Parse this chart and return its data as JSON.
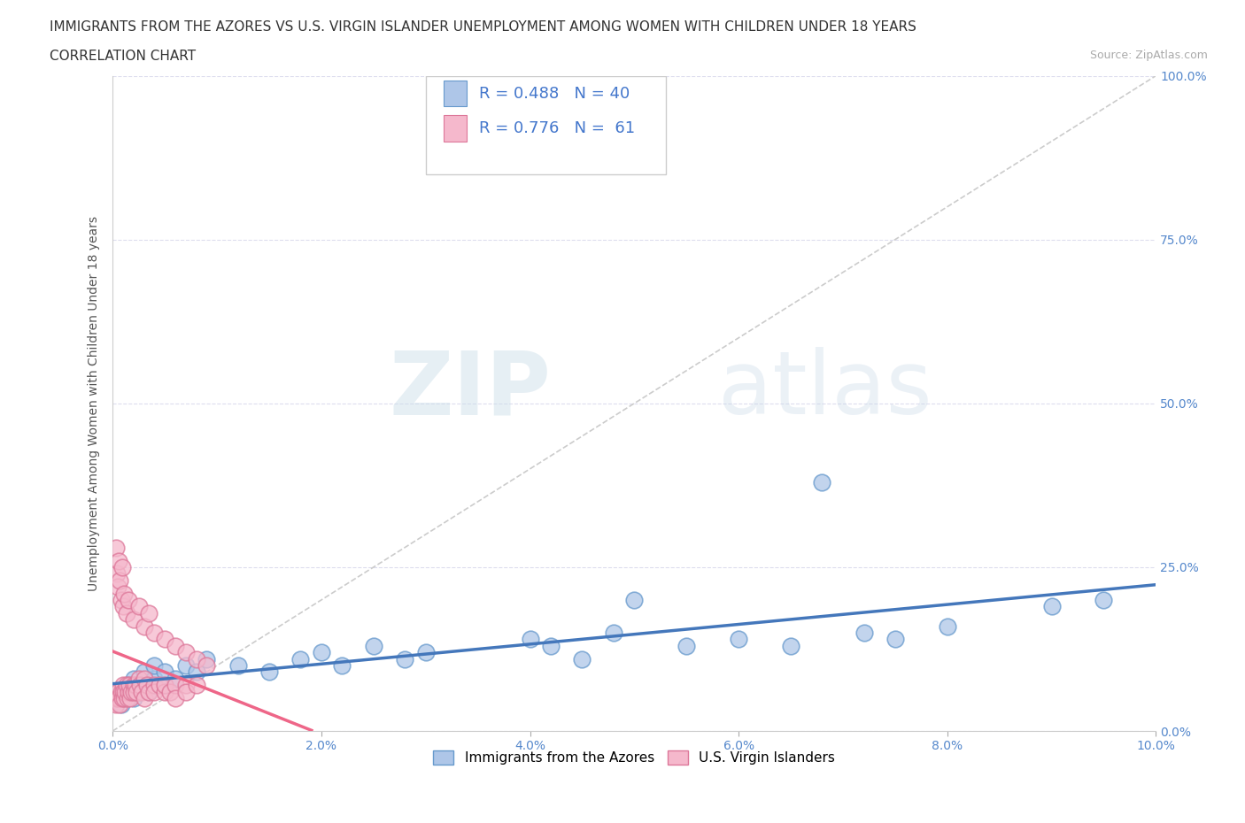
{
  "title_line1": "IMMIGRANTS FROM THE AZORES VS U.S. VIRGIN ISLANDER UNEMPLOYMENT AMONG WOMEN WITH CHILDREN UNDER 18 YEARS",
  "title_line2": "CORRELATION CHART",
  "source_text": "Source: ZipAtlas.com",
  "ylabel": "Unemployment Among Women with Children Under 18 years",
  "xlim": [
    0.0,
    0.1
  ],
  "ylim": [
    0.0,
    1.0
  ],
  "xticks": [
    0.0,
    0.02,
    0.04,
    0.06,
    0.08,
    0.1
  ],
  "xtick_labels": [
    "0.0%",
    "2.0%",
    "4.0%",
    "6.0%",
    "8.0%",
    "10.0%"
  ],
  "yticks": [
    0.0,
    0.25,
    0.5,
    0.75,
    1.0
  ],
  "ytick_labels": [
    "0.0%",
    "25.0%",
    "50.0%",
    "75.0%",
    "100.0%"
  ],
  "background_color": "#ffffff",
  "grid_color": "#ddddee",
  "watermark_zip": "ZIP",
  "watermark_atlas": "atlas",
  "azores_color": "#aec6e8",
  "azores_edge_color": "#6699cc",
  "virgin_color": "#f5b8cc",
  "virgin_edge_color": "#dd7799",
  "trend_azores_color": "#4477bb",
  "trend_virgin_color": "#ee6688",
  "diag_color": "#cccccc",
  "legend_R1": "R = 0.488",
  "legend_N1": "N = 40",
  "legend_R2": "R = 0.776",
  "legend_N2": "N =  61",
  "legend_color": "#4477cc",
  "legend_label1": "Immigrants from the Azores",
  "legend_label2": "U.S. Virgin Islanders",
  "azores_x": [
    0.0008,
    0.001,
    0.0012,
    0.0015,
    0.002,
    0.002,
    0.0025,
    0.003,
    0.003,
    0.0035,
    0.004,
    0.004,
    0.005,
    0.005,
    0.006,
    0.007,
    0.008,
    0.009,
    0.012,
    0.015,
    0.018,
    0.02,
    0.022,
    0.025,
    0.028,
    0.03,
    0.04,
    0.042,
    0.045,
    0.048,
    0.05,
    0.055,
    0.06,
    0.065,
    0.068,
    0.072,
    0.075,
    0.08,
    0.09,
    0.095
  ],
  "azores_y": [
    0.04,
    0.06,
    0.05,
    0.07,
    0.05,
    0.08,
    0.06,
    0.07,
    0.09,
    0.06,
    0.08,
    0.1,
    0.07,
    0.09,
    0.08,
    0.1,
    0.09,
    0.11,
    0.1,
    0.09,
    0.11,
    0.12,
    0.1,
    0.13,
    0.11,
    0.12,
    0.14,
    0.13,
    0.11,
    0.15,
    0.2,
    0.13,
    0.14,
    0.13,
    0.38,
    0.15,
    0.14,
    0.16,
    0.19,
    0.2
  ],
  "virgin_x": [
    0.0003,
    0.0004,
    0.0005,
    0.0005,
    0.0006,
    0.0007,
    0.0008,
    0.0009,
    0.001,
    0.001,
    0.0011,
    0.0012,
    0.0013,
    0.0014,
    0.0015,
    0.0016,
    0.0017,
    0.0018,
    0.002,
    0.002,
    0.0022,
    0.0023,
    0.0025,
    0.0026,
    0.0028,
    0.003,
    0.003,
    0.0033,
    0.0035,
    0.004,
    0.004,
    0.0045,
    0.005,
    0.005,
    0.0055,
    0.006,
    0.006,
    0.007,
    0.007,
    0.008,
    0.0003,
    0.0004,
    0.0005,
    0.0006,
    0.0007,
    0.0008,
    0.0009,
    0.001,
    0.0011,
    0.0013,
    0.0015,
    0.002,
    0.0025,
    0.003,
    0.0035,
    0.004,
    0.005,
    0.006,
    0.007,
    0.008,
    0.009
  ],
  "virgin_y": [
    0.04,
    0.05,
    0.06,
    0.05,
    0.05,
    0.04,
    0.06,
    0.05,
    0.07,
    0.06,
    0.05,
    0.06,
    0.07,
    0.05,
    0.06,
    0.07,
    0.05,
    0.06,
    0.07,
    0.06,
    0.07,
    0.06,
    0.08,
    0.07,
    0.06,
    0.08,
    0.05,
    0.07,
    0.06,
    0.07,
    0.06,
    0.07,
    0.06,
    0.07,
    0.06,
    0.07,
    0.05,
    0.07,
    0.06,
    0.07,
    0.28,
    0.24,
    0.22,
    0.26,
    0.23,
    0.2,
    0.25,
    0.19,
    0.21,
    0.18,
    0.2,
    0.17,
    0.19,
    0.16,
    0.18,
    0.15,
    0.14,
    0.13,
    0.12,
    0.11,
    0.1
  ],
  "title_fontsize": 11,
  "subtitle_fontsize": 11,
  "axis_label_fontsize": 10,
  "tick_fontsize": 10,
  "legend_fontsize": 13
}
